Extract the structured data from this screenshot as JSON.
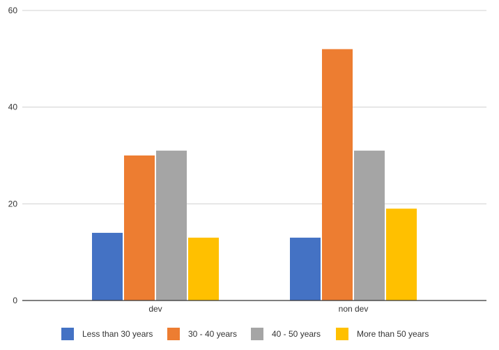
{
  "chart_data": {
    "type": "bar",
    "title": "",
    "xlabel": "",
    "ylabel": "",
    "categories": [
      "dev",
      "non dev"
    ],
    "series": [
      {
        "name": "Less than 30 years",
        "color": "#4472C4",
        "values": [
          14,
          13
        ]
      },
      {
        "name": "30 - 40 years",
        "color": "#ED7D31",
        "values": [
          30,
          52
        ]
      },
      {
        "name": "40 - 50 years",
        "color": "#A5A5A5",
        "values": [
          31,
          31
        ]
      },
      {
        "name": "More than 50 years",
        "color": "#FFC000",
        "values": [
          13,
          19
        ]
      }
    ],
    "ylim": [
      0,
      60
    ],
    "yticks": [
      "0",
      "20",
      "40",
      "60"
    ],
    "grid": true,
    "legend_position": "bottom"
  }
}
